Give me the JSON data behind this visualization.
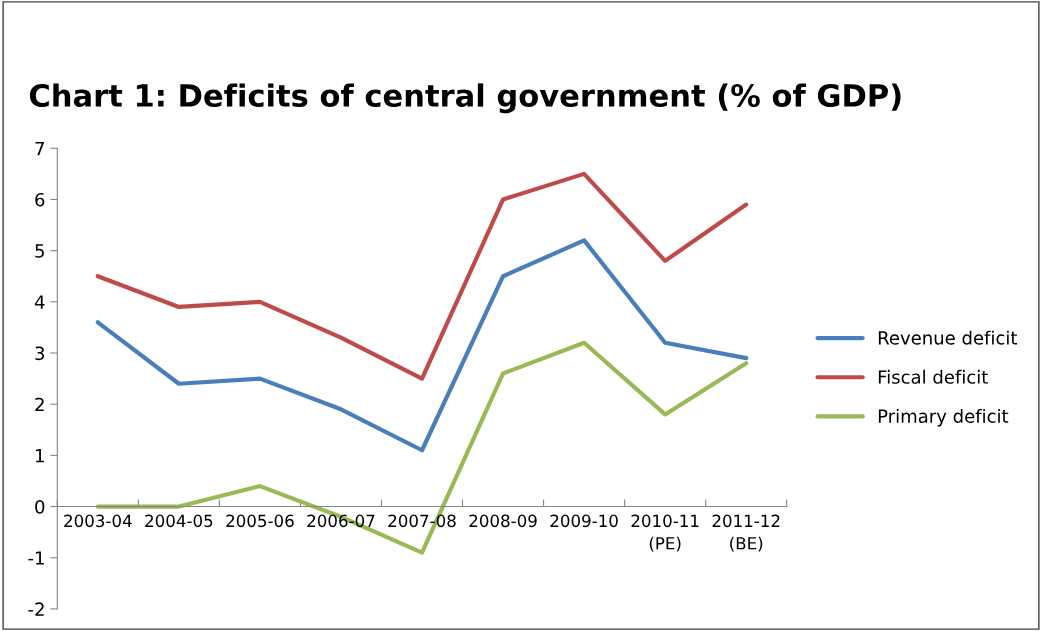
{
  "chart_data": {
    "type": "line",
    "title": "Chart 1: Deficits of central government (% of GDP)",
    "categories": [
      "2003-04",
      "2004-05",
      "2005-06",
      "2006-07",
      "2007-08",
      "2008-09",
      "2009-10",
      "2010-11\n(PE)",
      "2011-12\n(BE)"
    ],
    "series": [
      {
        "name": "Revenue deficit",
        "color": "#4a7ebb",
        "values": [
          3.6,
          2.4,
          2.5,
          1.9,
          1.1,
          4.5,
          5.2,
          3.2,
          2.9
        ]
      },
      {
        "name": "Fiscal deficit",
        "color": "#be4b48",
        "values": [
          4.5,
          3.9,
          4.0,
          3.3,
          2.5,
          6.0,
          6.5,
          4.8,
          5.9
        ]
      },
      {
        "name": "Primary deficit",
        "color": "#98b954",
        "values": [
          0.0,
          0.0,
          0.4,
          -0.2,
          -0.9,
          2.6,
          3.2,
          1.8,
          2.8
        ]
      }
    ],
    "ylim": [
      -2,
      7
    ],
    "yticks": [
      -2,
      -1,
      0,
      1,
      2,
      3,
      4,
      5,
      6,
      7
    ],
    "grid": false,
    "legend": "right",
    "marker": "none",
    "line_style": "solid"
  }
}
